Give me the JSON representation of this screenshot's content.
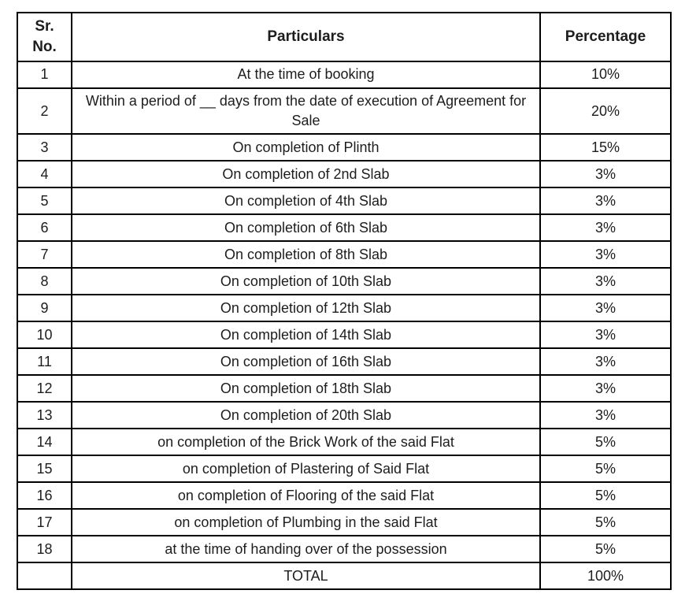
{
  "table": {
    "name": "payment-schedule",
    "columns": [
      {
        "key": "sr",
        "label": "Sr.\nNo."
      },
      {
        "key": "particulars",
        "label": "Particulars"
      },
      {
        "key": "percentage",
        "label": "Percentage"
      }
    ],
    "rows": [
      {
        "sr": "1",
        "particulars": "At the time of booking",
        "percentage": "10%"
      },
      {
        "sr": "2",
        "particulars": "Within a period of __ days from the date of execution of Agreement for Sale",
        "percentage": "20%"
      },
      {
        "sr": "3",
        "particulars": "On completion of Plinth",
        "percentage": "15%"
      },
      {
        "sr": "4",
        "particulars": "On completion of 2nd Slab",
        "percentage": "3%"
      },
      {
        "sr": "5",
        "particulars": "On completion of 4th Slab",
        "percentage": "3%"
      },
      {
        "sr": "6",
        "particulars": "On completion of 6th Slab",
        "percentage": "3%"
      },
      {
        "sr": "7",
        "particulars": "On completion of 8th Slab",
        "percentage": "3%"
      },
      {
        "sr": "8",
        "particulars": "On completion of 10th Slab",
        "percentage": "3%"
      },
      {
        "sr": "9",
        "particulars": "On completion of 12th Slab",
        "percentage": "3%"
      },
      {
        "sr": "10",
        "particulars": "On completion of 14th Slab",
        "percentage": "3%"
      },
      {
        "sr": "11",
        "particulars": "On completion of 16th Slab",
        "percentage": "3%"
      },
      {
        "sr": "12",
        "particulars": "On completion of 18th Slab",
        "percentage": "3%"
      },
      {
        "sr": "13",
        "particulars": "On completion of 20th Slab",
        "percentage": "3%"
      },
      {
        "sr": "14",
        "particulars": "on completion of the Brick Work of the said Flat",
        "percentage": "5%"
      },
      {
        "sr": "15",
        "particulars": "on completion of Plastering of Said Flat",
        "percentage": "5%"
      },
      {
        "sr": "16",
        "particulars": "on completion of Flooring of the said Flat",
        "percentage": "5%"
      },
      {
        "sr": "17",
        "particulars": "on completion of Plumbing in the said Flat",
        "percentage": "5%"
      },
      {
        "sr": "18",
        "particulars": "at the time of handing over of the possession",
        "percentage": "5%"
      },
      {
        "sr": "",
        "particulars": "TOTAL",
        "percentage": "100%"
      }
    ]
  }
}
